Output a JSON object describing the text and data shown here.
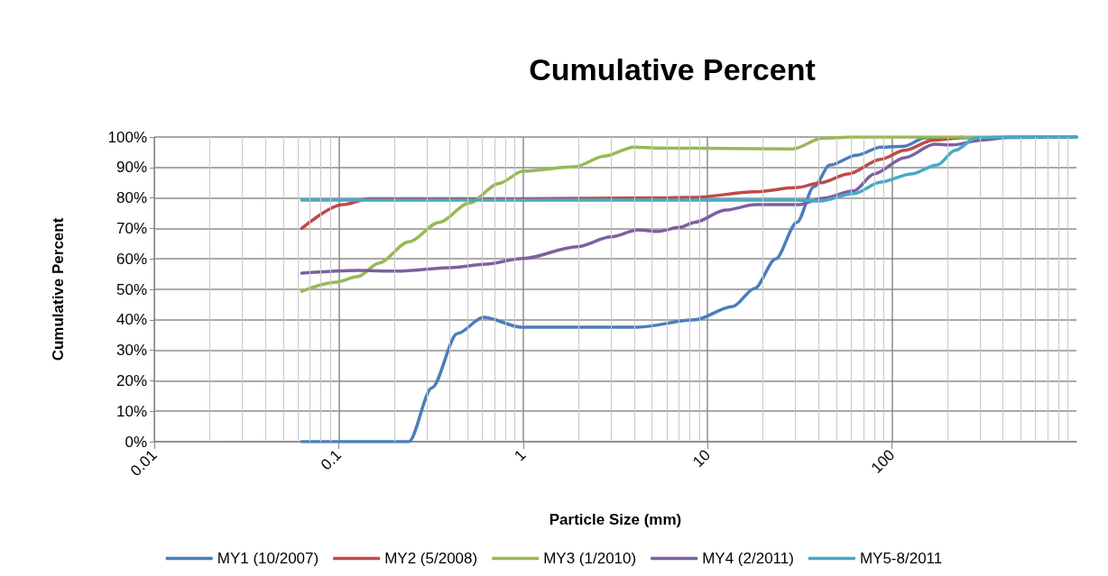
{
  "chart_data": {
    "type": "line",
    "title": "Cumulative Percent",
    "xlabel": "Particle Size (mm)",
    "ylabel": "Cumulative Percent",
    "log": "x",
    "xlim": [
      0.01,
      1000
    ],
    "xticks": [
      0.01,
      0.1,
      1,
      10,
      100
    ],
    "ylim": [
      0,
      100
    ],
    "yticks": [
      {
        "value": 0,
        "label": "0%"
      },
      {
        "value": 10,
        "label": "10%"
      },
      {
        "value": 20,
        "label": "20%"
      },
      {
        "value": 30,
        "label": "30%"
      },
      {
        "value": 40,
        "label": "40%"
      },
      {
        "value": 50,
        "label": "50%"
      },
      {
        "value": 60,
        "label": "60%"
      },
      {
        "value": 70,
        "label": "70%"
      },
      {
        "value": 80,
        "label": "80%"
      },
      {
        "value": 90,
        "label": "90%"
      },
      {
        "value": 100,
        "label": "100%"
      }
    ],
    "grid": true,
    "legend": "bottom",
    "marker": "none",
    "line_style": "solid",
    "series": [
      {
        "name": "MY1 (10/2007)",
        "color": "#4a7ebb",
        "x": [
          0.063,
          0.125,
          0.24,
          0.32,
          0.44,
          0.61,
          0.98,
          4.2,
          8.5,
          13.7,
          18,
          23.4,
          30.5,
          37.8,
          46,
          64,
          87,
          117,
          150,
          1000
        ],
        "values": [
          0,
          0,
          0,
          17.7,
          35.5,
          40.8,
          37.6,
          37.6,
          40,
          44.4,
          50.3,
          60,
          72,
          83.7,
          90.8,
          94,
          96.7,
          97,
          99.7,
          100
        ]
      },
      {
        "name": "MY2 (5/2008)",
        "color": "#be4b48",
        "x": [
          0.063,
          0.105,
          0.147,
          1,
          5.2,
          8.5,
          18,
          30.5,
          41,
          58,
          87,
          117,
          167,
          241
        ],
        "values": [
          70,
          77.8,
          79.7,
          79.7,
          80,
          80.2,
          82,
          83.4,
          85,
          87.9,
          92.7,
          95.6,
          99,
          100
        ]
      },
      {
        "name": "MY3 (1/2010)",
        "color": "#98b954",
        "x": [
          0.063,
          0.097,
          0.127,
          0.165,
          0.24,
          0.35,
          0.51,
          0.74,
          1,
          1.9,
          2.75,
          4,
          5.6,
          29,
          42,
          60,
          1000
        ],
        "values": [
          49.4,
          52.4,
          54.2,
          58.6,
          65.6,
          72,
          78.3,
          84.8,
          88.8,
          90.2,
          93.7,
          96.7,
          96.4,
          96.1,
          99.6,
          100,
          100
        ]
      },
      {
        "name": "MY4 (2/2011)",
        "color": "#7d60a0",
        "x": [
          0.063,
          0.127,
          0.206,
          0.42,
          0.61,
          1,
          1.95,
          3,
          4.2,
          5.4,
          7.1,
          8.5,
          12.5,
          18,
          31.5,
          42,
          62,
          80,
          117,
          170,
          213,
          304,
          440,
          1000
        ],
        "values": [
          55.3,
          56.2,
          56,
          57.2,
          58.2,
          60.1,
          64,
          67.2,
          69.5,
          69,
          70.4,
          72,
          76,
          77.8,
          77.8,
          79.9,
          82.3,
          87.9,
          93.2,
          97.6,
          97.4,
          99,
          100,
          100
        ]
      },
      {
        "name": "MY5-8/2011",
        "color": "#46aac5",
        "x": [
          0.063,
          1,
          10,
          30,
          41,
          62,
          87,
          127,
          176,
          220,
          285,
          400,
          1000
        ],
        "values": [
          79.3,
          79.3,
          79.3,
          79.3,
          79,
          81.4,
          85.2,
          87.9,
          90.8,
          95.6,
          99.7,
          100,
          100
        ]
      }
    ]
  }
}
